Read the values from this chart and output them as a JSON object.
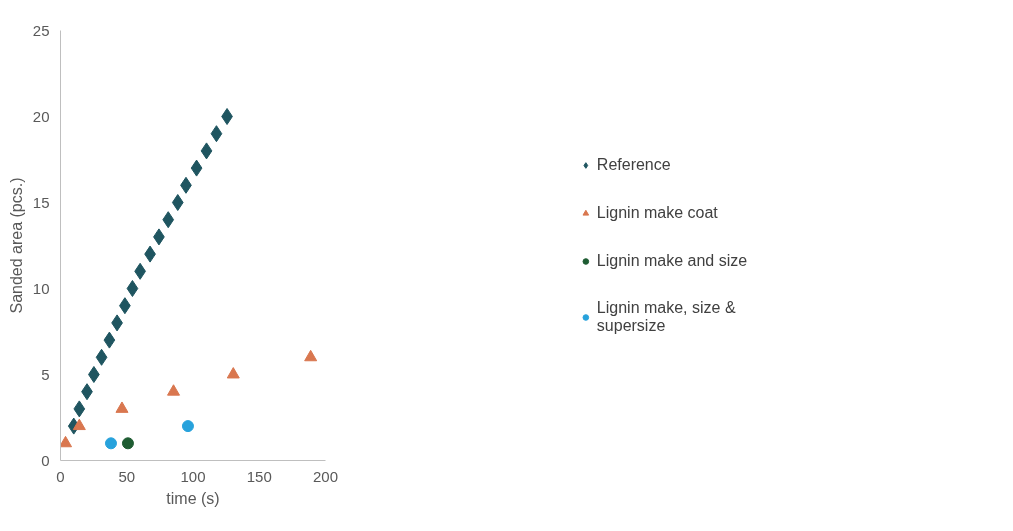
{
  "chart_data": {
    "type": "scatter",
    "xlabel": "time (s)",
    "ylabel": "Sanded area (pcs.)",
    "xlim": [
      0,
      200
    ],
    "xticks": [
      0,
      50,
      100,
      150,
      200
    ],
    "ylim": [
      0,
      25
    ],
    "yticks": [
      0,
      5,
      10,
      15,
      20,
      25
    ],
    "grid": false,
    "legend": "right",
    "series": [
      {
        "name": "Reference",
        "color": "#1f5560",
        "marker": "diamond",
        "x": [
          10.0,
          14.2,
          20.0,
          25.2,
          31.0,
          36.9,
          42.7,
          48.6,
          54.3,
          60.1,
          67.6,
          74.3,
          81.3,
          88.5,
          94.7,
          102.7,
          110.2,
          117.7,
          125.7
        ],
        "values": [
          2,
          3,
          4,
          5,
          6,
          7,
          8,
          9,
          10,
          11,
          12,
          13,
          14,
          15,
          16,
          17,
          18,
          19,
          20
        ]
      },
      {
        "name": "Lignin make coat",
        "color": "#d9774f",
        "marker": "triangle",
        "x": [
          3.8,
          14.2,
          46.4,
          85.3,
          130.4,
          188.8
        ],
        "values": [
          1,
          2,
          3,
          4,
          5,
          6
        ]
      },
      {
        "name": "Lignin make and size",
        "color": "#1e5c32",
        "marker": "circle",
        "x": [
          50.9
        ],
        "values": [
          1
        ]
      },
      {
        "name": "Lignin make, size & supersize",
        "color": "#27a2dc",
        "marker": "circle",
        "x": [
          38.1,
          96.2
        ],
        "values": [
          1,
          2
        ]
      }
    ]
  }
}
